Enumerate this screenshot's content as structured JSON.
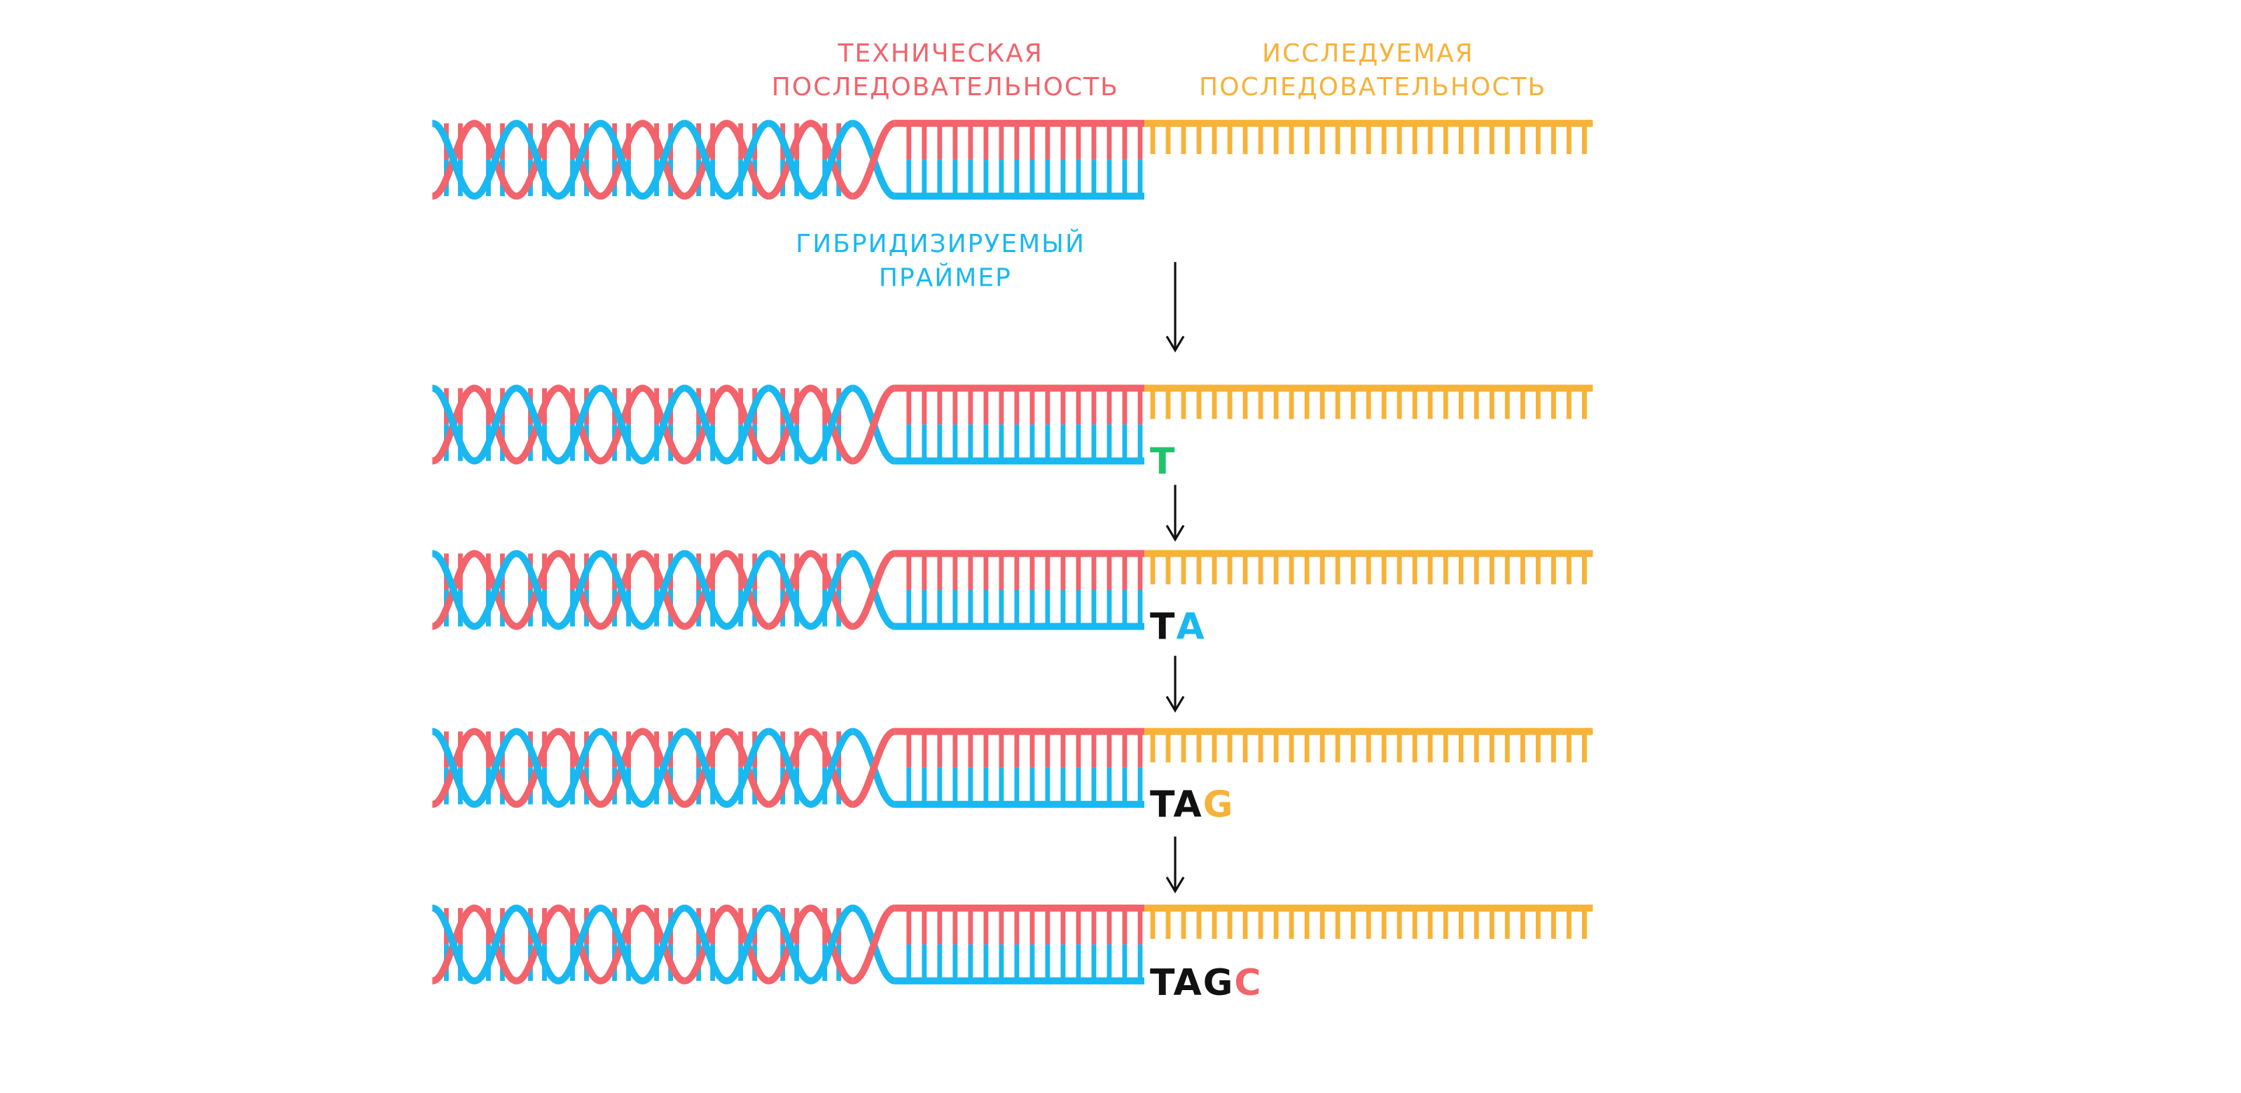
{
  "colors": {
    "technical": "#F2636B",
    "primer": "#19B8F0",
    "target": "#F7B238",
    "arrow": "#111111",
    "sequence_base": "#111111"
  },
  "labels": {
    "technical_sequence": [
      "ТЕХНИЧЕСКАЯ",
      "ПОСЛЕДОВАТЕЛЬНОСТЬ"
    ],
    "target_sequence": [
      "ИССЛЕДУЕМАЯ",
      "ПОСЛЕДОВАТЕЛЬНОСТЬ"
    ],
    "hybridized_primer": [
      "ГИБРИДИЗИРУЕМЫЙ",
      "ПРАЙМЕР"
    ]
  },
  "steps": [
    {
      "sequence": "",
      "new_base": "",
      "new_base_color": ""
    },
    {
      "sequence": "",
      "new_base": "T",
      "new_base_color": "#1FC46A"
    },
    {
      "sequence": "T",
      "new_base": "A",
      "new_base_color": "#19B8F0"
    },
    {
      "sequence": "TA",
      "new_base": "G",
      "new_base_color": "#F7B238"
    },
    {
      "sequence": "TAG",
      "new_base": "C",
      "new_base_color": "#F2636B"
    }
  ]
}
